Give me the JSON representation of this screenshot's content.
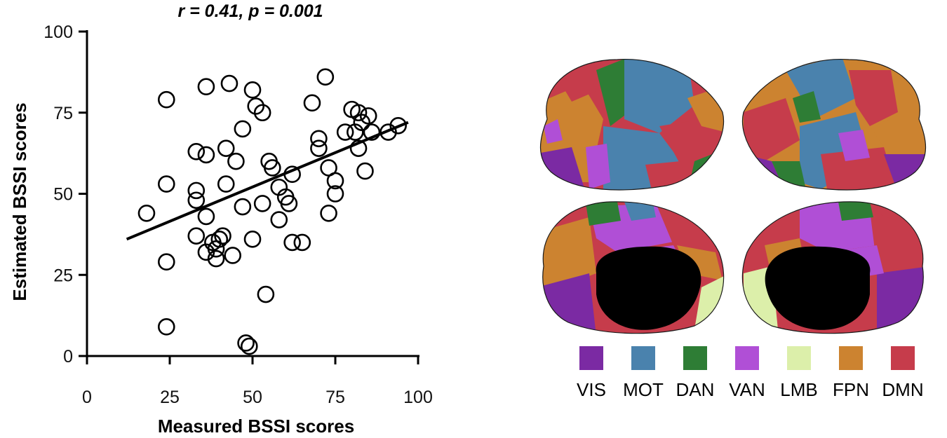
{
  "chart_data": {
    "type": "scatter",
    "title": "r = 0.41, p = 0.001",
    "xlabel": "Measured BSSI scores",
    "ylabel": "Estimated BSSI scores",
    "xlim": [
      0,
      100
    ],
    "ylim": [
      0,
      100
    ],
    "xticks": [
      "0",
      "25",
      "50",
      "75",
      "100"
    ],
    "yticks": [
      "0",
      "25",
      "50",
      "75",
      "100"
    ],
    "grid": false,
    "points": [
      [
        18,
        44
      ],
      [
        24,
        79
      ],
      [
        24,
        53
      ],
      [
        24,
        29
      ],
      [
        24,
        9
      ],
      [
        33,
        63
      ],
      [
        33,
        51
      ],
      [
        33,
        48
      ],
      [
        33,
        37
      ],
      [
        36,
        83
      ],
      [
        36,
        62
      ],
      [
        36,
        43
      ],
      [
        36,
        32
      ],
      [
        38,
        35
      ],
      [
        39,
        30
      ],
      [
        39,
        33
      ],
      [
        40,
        36
      ],
      [
        41,
        37
      ],
      [
        42,
        64
      ],
      [
        42,
        53
      ],
      [
        43,
        84
      ],
      [
        44,
        31
      ],
      [
        45,
        60
      ],
      [
        47,
        70
      ],
      [
        47,
        46
      ],
      [
        48,
        4
      ],
      [
        49,
        3
      ],
      [
        50,
        82
      ],
      [
        51,
        77
      ],
      [
        50,
        36
      ],
      [
        53,
        75
      ],
      [
        53,
        47
      ],
      [
        54,
        19
      ],
      [
        55,
        60
      ],
      [
        56,
        58
      ],
      [
        58,
        52
      ],
      [
        58,
        42
      ],
      [
        60,
        49
      ],
      [
        61,
        47
      ],
      [
        62,
        56
      ],
      [
        62,
        35
      ],
      [
        65,
        35
      ],
      [
        68,
        78
      ],
      [
        70,
        67
      ],
      [
        70,
        64
      ],
      [
        72,
        86
      ],
      [
        73,
        58
      ],
      [
        73,
        44
      ],
      [
        75,
        54
      ],
      [
        75,
        50
      ],
      [
        78,
        69
      ],
      [
        80,
        76
      ],
      [
        81,
        69
      ],
      [
        82,
        75
      ],
      [
        82,
        64
      ],
      [
        83,
        72
      ],
      [
        84,
        57
      ],
      [
        85,
        74
      ],
      [
        86,
        69
      ],
      [
        91,
        69
      ],
      [
        94,
        71
      ]
    ],
    "trendline": {
      "x": [
        12,
        97
      ],
      "y": [
        36,
        72
      ]
    }
  },
  "legend": [
    {
      "label": "VIS",
      "color": "#7b2aa3"
    },
    {
      "label": "MOT",
      "color": "#4a82ad"
    },
    {
      "label": "DAN",
      "color": "#2e7d35"
    },
    {
      "label": "VAN",
      "color": "#b04fd6"
    },
    {
      "label": "LMB",
      "color": "#dcefaa"
    },
    {
      "label": "FPN",
      "color": "#cc8330"
    },
    {
      "label": "DMN",
      "color": "#c63c4b"
    }
  ]
}
